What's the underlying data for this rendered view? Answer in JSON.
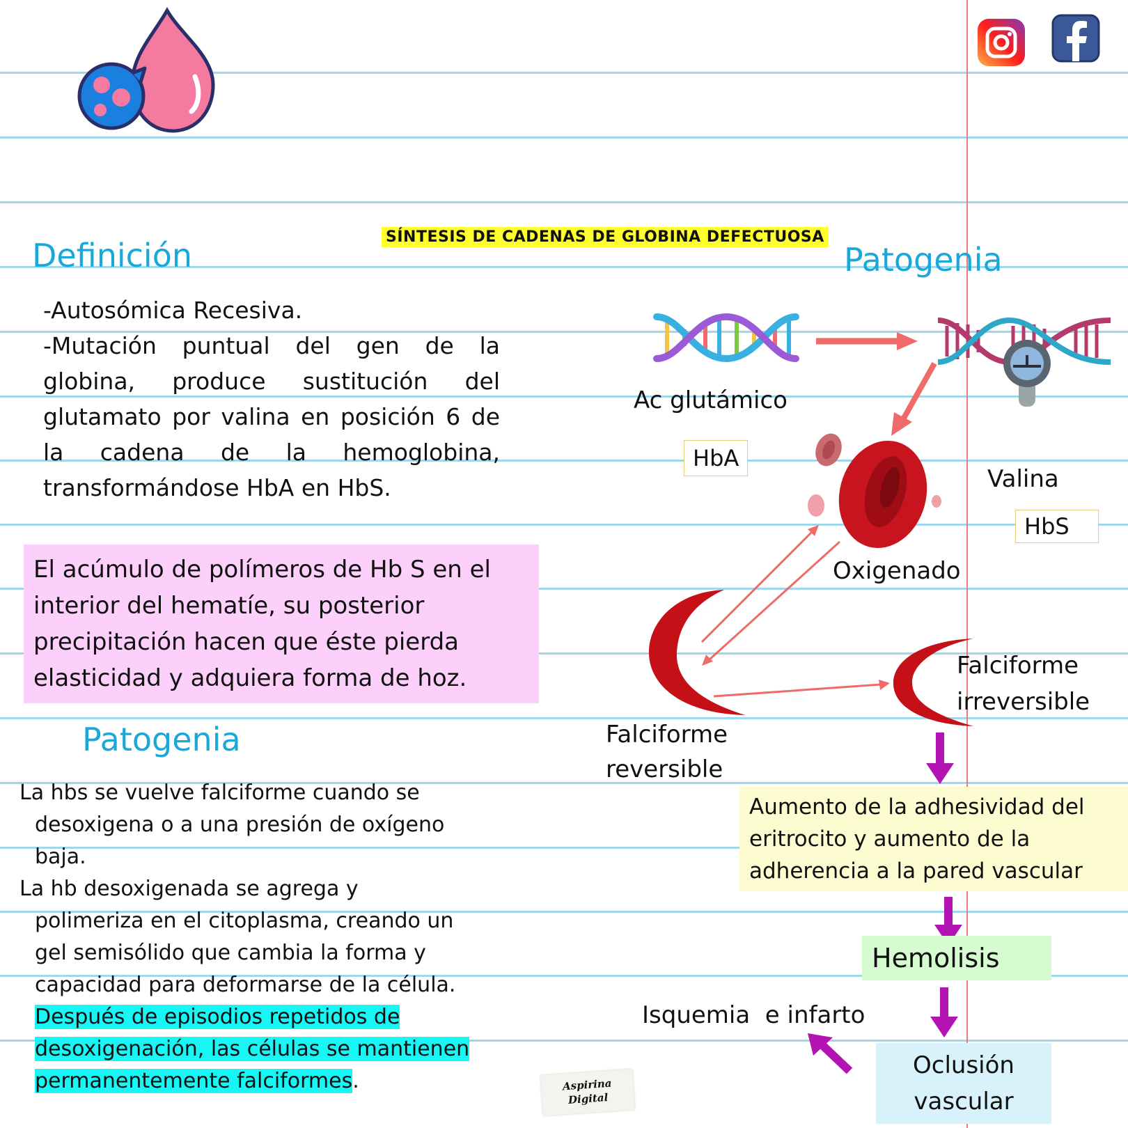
{
  "title": "SÍNTESIS DE CADENAS DE GLOBINA DEFECTUOSA",
  "definicion": {
    "heading": "Definición",
    "line1": "-Autosómica Recesiva.",
    "line2": "-Mutación puntual del gen de la globina, produce sustitución del glutamato por valina en posición 6 de la cadena de la hemoglobina, transformándose HbA en HbS."
  },
  "pink_box": "El acúmulo de polímeros de Hb S en el interior del hematíe, su posterior precipitación hacen que éste pierda elasticidad y adquiera forma de hoz.",
  "patogenia_left": {
    "heading": "Patogenia",
    "p1_a": "La hbs se vuelve falciforme cuando se",
    "p1_b": "desoxigena o a una presión de oxígeno",
    "p1_c": "baja.",
    "p2_a": "La hb desoxigenada se agrega y",
    "p2_b": "polimeriza en el citoplasma, creando un",
    "p2_c": "gel semisólido que cambia la forma y",
    "p2_d": "capacidad para deformarse de la célula.",
    "p3_a": "Después de episodios repetidos de",
    "p3_b": "desoxigenación, las células se mantienen",
    "p3_c": "permanentemente falciformes",
    "p3_dot": "."
  },
  "patogenia_right": {
    "heading": "Patogenia",
    "ac_glutamico": "Ac glutámico",
    "hba": "HbA",
    "valina": "Valina",
    "hbs": "HbS",
    "oxigenado": "Oxigenado",
    "falciforme_rev_1": "Falciforme",
    "falciforme_rev_2": "reversible",
    "falciforme_irrev_1": "Falciforme",
    "falciforme_irrev_2": "irreversible",
    "adhesividad": "Aumento de la adhesividad del eritrocito y aumento de la adherencia a la pared vascular",
    "hemolisis": "Hemolisis",
    "oclusion": "Oclusión vascular",
    "isquemia": "Isquemia  e infarto"
  },
  "watermark": {
    "line1": "Aspirina",
    "line2": "Digital"
  },
  "social": [
    "instagram-icon",
    "facebook-icon"
  ],
  "colors": {
    "heading": "#19a8d8",
    "title_highlight": "#ffff2e",
    "pink_box": "#fdd0fb",
    "cyan_highlight": "#18f5f5",
    "yellow_box": "#fcfcd0",
    "green_box": "#d6fbd0",
    "blue_box": "#d8f2fb",
    "red_arrow": "#f06a6a",
    "purple_arrow": "#b413b4",
    "blood_cell": "#c8141e"
  }
}
